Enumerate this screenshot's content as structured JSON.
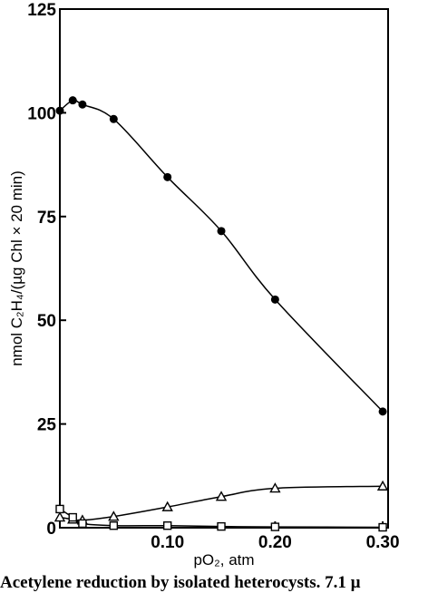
{
  "chart_data": {
    "type": "line",
    "xlabel": "pO₂, atm",
    "ylabel": "nmol C₂H₄/(µg Chl × 20 min)",
    "xlim": [
      0,
      0.305
    ],
    "ylim": [
      0,
      125
    ],
    "x_ticks": [
      0.1,
      0.2,
      0.3
    ],
    "x_tick_labels": [
      "0.10",
      "0.20",
      "0.30"
    ],
    "y_ticks": [
      0,
      25,
      50,
      75,
      100,
      125
    ],
    "y_tick_labels": [
      "0",
      "25",
      "50",
      "75",
      "100",
      "125"
    ],
    "grid": false,
    "series": [
      {
        "marker": "filled-circle",
        "x": [
          0.0,
          0.012,
          0.021,
          0.05,
          0.1,
          0.15,
          0.2,
          0.3
        ],
        "y": [
          100.5,
          103,
          102,
          98.5,
          84.5,
          71.5,
          55,
          28
        ]
      },
      {
        "marker": "open-triangle",
        "x": [
          0.0,
          0.012,
          0.021,
          0.05,
          0.1,
          0.15,
          0.2,
          0.3
        ],
        "y": [
          2.5,
          2.0,
          1.8,
          2.7,
          5.0,
          7.5,
          9.5,
          10.0
        ]
      },
      {
        "marker": "open-square",
        "x": [
          0.0,
          0.012,
          0.021,
          0.05,
          0.1,
          0.15,
          0.2,
          0.3
        ],
        "y": [
          4.5,
          2.5,
          1.0,
          0.5,
          0.5,
          0.3,
          0.2,
          0.1
        ]
      }
    ]
  },
  "caption": "Acetylene reduction by isolated heterocysts. 7.1 µ"
}
